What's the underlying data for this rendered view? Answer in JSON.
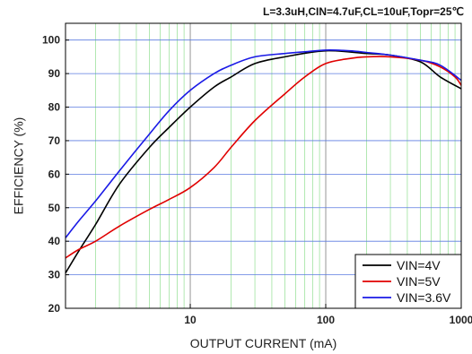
{
  "chart_data": {
    "type": "line",
    "title": "L=3.3uH,CIN=4.7uF,CL=10uF,Topr=25℃",
    "xlabel": "OUTPUT CURRENT (mA)",
    "ylabel": "EFFICIENCY (%)",
    "xscale": "log",
    "xlim": [
      1.2,
      1000
    ],
    "ylim": [
      20,
      105
    ],
    "x_ticks": [
      10,
      100,
      1000
    ],
    "x_tick_labels": [
      "10",
      "100",
      "1000"
    ],
    "y_ticks": [
      20,
      30,
      40,
      50,
      60,
      70,
      80,
      90,
      100
    ],
    "y_tick_labels": [
      "20",
      "30",
      "40",
      "50",
      "60",
      "70",
      "80",
      "90",
      "100"
    ],
    "grid": true,
    "legend_position": "bottom-right",
    "series": [
      {
        "name": "VIN=4V",
        "color": "#000000",
        "x": [
          1.2,
          1.5,
          2,
          3,
          5,
          7,
          10,
          15,
          20,
          30,
          50,
          100,
          200,
          300,
          500,
          700,
          1000
        ],
        "y": [
          30.5,
          37,
          45,
          57,
          68,
          74,
          80,
          86,
          89,
          93,
          95,
          96.8,
          96,
          95.5,
          93.5,
          89,
          85.5
        ]
      },
      {
        "name": "VIN=5V",
        "color": "#e00000",
        "x": [
          1.2,
          1.5,
          2,
          3,
          5,
          7,
          10,
          15,
          20,
          30,
          50,
          70,
          100,
          150,
          200,
          300,
          500,
          700,
          900,
          1000
        ],
        "y": [
          35,
          37.5,
          40,
          44.5,
          49.5,
          52.5,
          56,
          62,
          68,
          76,
          84,
          89,
          93,
          94.5,
          95,
          95,
          94,
          92,
          89,
          86.5
        ]
      },
      {
        "name": "VIN=3.6V",
        "color": "#1a1ae6",
        "x": [
          1.2,
          1.5,
          2,
          3,
          5,
          7,
          10,
          15,
          20,
          30,
          50,
          70,
          100,
          150,
          200,
          300,
          500,
          700,
          1000
        ],
        "y": [
          41,
          46,
          52,
          61,
          72,
          79,
          85,
          90,
          92.5,
          95,
          96,
          96.5,
          97,
          96.8,
          96.3,
          95.5,
          94,
          92.5,
          88
        ]
      }
    ]
  }
}
